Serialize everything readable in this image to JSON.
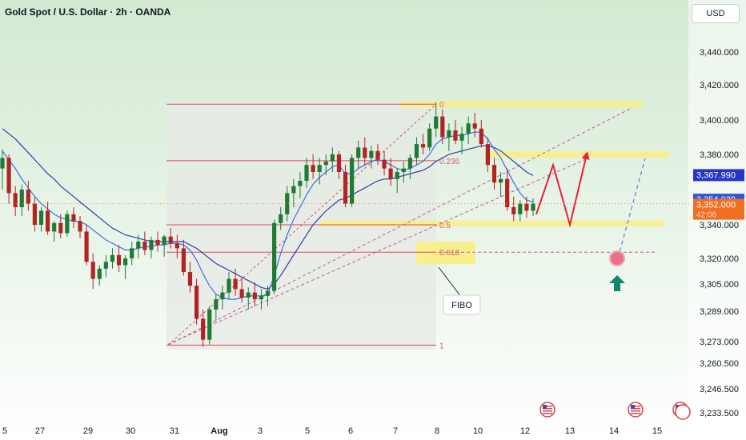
{
  "header": {
    "title": "Gold Spot / U.S. Dollar · 2h · OANDA",
    "currency_button": "USD"
  },
  "colors": {
    "background_top": "#d6ead5",
    "background_bottom": "#ffffff",
    "candle_up": "#1f7a34",
    "candle_down": "#b22424",
    "ma_fast": "#3a6ee8",
    "ma_slow": "#2d3db0",
    "fib_line": "#e0485a",
    "zone": "#fbee7c",
    "projection": "#e8203c",
    "target_dot": "#e9708a",
    "up_arrow": "#10896a",
    "price_badge_blue": "#2f56d8",
    "price_badge_navy": "#2436c7",
    "price_badge_orange": "#f26f21"
  },
  "chart_data": {
    "type": "candlestick",
    "symbol": "Gold Spot / U.S. Dollar",
    "interval": "2h",
    "source": "OANDA",
    "x_tick_labels": [
      "5",
      "27",
      "29",
      "30",
      "31",
      "Aug",
      "3",
      "5",
      "6",
      "7",
      "8",
      "10",
      "12",
      "13",
      "14",
      "15"
    ],
    "y_tick_labels": [
      3440.0,
      3420.0,
      3400.0,
      3380.0,
      3340.0,
      3320.0,
      3305.0,
      3289.0,
      3273.0,
      3260.5,
      3246.5,
      3233.5
    ],
    "y_tick_text": [
      "3,440.000",
      "3,420.000",
      "3,400.000",
      "3,380.000",
      "3,340.000",
      "3,320.000",
      "3,305.000",
      "3,289.000",
      "3,273.000",
      "3,260.500",
      "3,246.500",
      "3,233.500"
    ],
    "ylim": [
      3230,
      3458
    ],
    "fibonacci": {
      "swing_low": 3271,
      "swing_high": 3409,
      "levels": [
        {
          "label": "0",
          "ratio": 0
        },
        {
          "label": "0.236",
          "ratio": 0.236
        },
        {
          "label": "0.5",
          "ratio": 0.5
        },
        {
          "label": "0.618",
          "ratio": 0.618
        },
        {
          "label": "1",
          "ratio": 1
        }
      ]
    },
    "price_badges": [
      {
        "value": "3,367.990",
        "color": "price_badge_navy"
      },
      {
        "value": "3,354.039",
        "color": "price_badge_blue"
      },
      {
        "value": "3,352.000",
        "countdown": "42:06",
        "color": "price_badge_orange"
      }
    ],
    "annotations": [
      {
        "text": "FIBO"
      }
    ],
    "candles": [
      [
        3372,
        3383,
        3360,
        3378
      ],
      [
        3378,
        3380,
        3352,
        3358
      ],
      [
        3358,
        3362,
        3345,
        3350
      ],
      [
        3350,
        3363,
        3345,
        3360
      ],
      [
        3360,
        3365,
        3348,
        3352
      ],
      [
        3352,
        3356,
        3336,
        3340
      ],
      [
        3340,
        3350,
        3336,
        3348
      ],
      [
        3348,
        3353,
        3334,
        3336
      ],
      [
        3336,
        3342,
        3330,
        3341
      ],
      [
        3341,
        3346,
        3332,
        3335
      ],
      [
        3335,
        3348,
        3333,
        3346
      ],
      [
        3346,
        3350,
        3338,
        3342
      ],
      [
        3342,
        3345,
        3332,
        3336
      ],
      [
        3336,
        3340,
        3316,
        3318
      ],
      [
        3318,
        3323,
        3302,
        3308
      ],
      [
        3308,
        3316,
        3304,
        3314
      ],
      [
        3314,
        3322,
        3309,
        3318
      ],
      [
        3318,
        3326,
        3314,
        3322
      ],
      [
        3322,
        3328,
        3312,
        3316
      ],
      [
        3316,
        3322,
        3308,
        3320
      ],
      [
        3320,
        3330,
        3316,
        3326
      ],
      [
        3326,
        3334,
        3320,
        3330
      ],
      [
        3330,
        3336,
        3322,
        3325
      ],
      [
        3325,
        3333,
        3320,
        3331
      ],
      [
        3331,
        3336,
        3324,
        3328
      ],
      [
        3328,
        3334,
        3321,
        3333
      ],
      [
        3333,
        3338,
        3326,
        3329
      ],
      [
        3329,
        3334,
        3320,
        3326
      ],
      [
        3326,
        3331,
        3310,
        3312
      ],
      [
        3312,
        3318,
        3300,
        3304
      ],
      [
        3304,
        3308,
        3282,
        3285
      ],
      [
        3285,
        3290,
        3270,
        3274
      ],
      [
        3274,
        3292,
        3271,
        3290
      ],
      [
        3290,
        3299,
        3284,
        3296
      ],
      [
        3296,
        3304,
        3290,
        3300
      ],
      [
        3300,
        3312,
        3296,
        3308
      ],
      [
        3308,
        3314,
        3298,
        3302
      ],
      [
        3302,
        3309,
        3294,
        3297
      ],
      [
        3297,
        3303,
        3290,
        3300
      ],
      [
        3300,
        3306,
        3292,
        3296
      ],
      [
        3296,
        3302,
        3290,
        3298
      ],
      [
        3298,
        3304,
        3292,
        3301
      ],
      [
        3301,
        3343,
        3299,
        3341
      ],
      [
        3341,
        3350,
        3337,
        3346
      ],
      [
        3346,
        3362,
        3342,
        3358
      ],
      [
        3358,
        3366,
        3350,
        3362
      ],
      [
        3362,
        3370,
        3355,
        3365
      ],
      [
        3365,
        3378,
        3361,
        3374
      ],
      [
        3374,
        3380,
        3366,
        3370
      ],
      [
        3370,
        3378,
        3363,
        3374
      ],
      [
        3374,
        3380,
        3368,
        3376
      ],
      [
        3376,
        3384,
        3370,
        3380
      ],
      [
        3380,
        3382,
        3366,
        3370
      ],
      [
        3370,
        3374,
        3350,
        3352
      ],
      [
        3352,
        3380,
        3350,
        3378
      ],
      [
        3378,
        3388,
        3372,
        3384
      ],
      [
        3384,
        3390,
        3374,
        3378
      ],
      [
        3378,
        3385,
        3372,
        3382
      ],
      [
        3382,
        3386,
        3374,
        3377
      ],
      [
        3377,
        3382,
        3368,
        3372
      ],
      [
        3372,
        3378,
        3362,
        3366
      ],
      [
        3366,
        3372,
        3358,
        3370
      ],
      [
        3370,
        3376,
        3364,
        3372
      ],
      [
        3372,
        3380,
        3366,
        3378
      ],
      [
        3378,
        3390,
        3374,
        3386
      ],
      [
        3386,
        3392,
        3380,
        3384
      ],
      [
        3384,
        3398,
        3382,
        3395
      ],
      [
        3395,
        3410,
        3390,
        3402
      ],
      [
        3402,
        3406,
        3386,
        3390
      ],
      [
        3390,
        3398,
        3382,
        3394
      ],
      [
        3394,
        3400,
        3386,
        3388
      ],
      [
        3388,
        3396,
        3380,
        3392
      ],
      [
        3392,
        3402,
        3386,
        3398
      ],
      [
        3398,
        3404,
        3390,
        3395
      ],
      [
        3395,
        3400,
        3384,
        3386
      ],
      [
        3386,
        3390,
        3370,
        3374
      ],
      [
        3374,
        3378,
        3360,
        3364
      ],
      [
        3364,
        3370,
        3356,
        3366
      ],
      [
        3366,
        3372,
        3348,
        3350
      ],
      [
        3350,
        3356,
        3342,
        3346
      ],
      [
        3346,
        3354,
        3342,
        3352
      ],
      [
        3352,
        3356,
        3344,
        3348
      ],
      [
        3348,
        3355,
        3345,
        3352
      ]
    ],
    "ma_fast": [
      3382,
      3377,
      3372,
      3366,
      3361,
      3356,
      3352,
      3349,
      3346,
      3344,
      3343,
      3342,
      3342,
      3340,
      3337,
      3334,
      3331,
      3329,
      3327,
      3325,
      3325,
      3326,
      3327,
      3327,
      3328,
      3328,
      3329,
      3329,
      3328,
      3325,
      3319,
      3311,
      3304,
      3299,
      3297,
      3296,
      3296,
      3297,
      3298,
      3298,
      3298,
      3299,
      3310,
      3323,
      3334,
      3343,
      3350,
      3357,
      3363,
      3367,
      3370,
      3373,
      3374,
      3369,
      3369,
      3372,
      3374,
      3376,
      3377,
      3376,
      3374,
      3372,
      3371,
      3372,
      3374,
      3376,
      3380,
      3386,
      3389,
      3390,
      3391,
      3391,
      3392,
      3393,
      3393,
      3389,
      3383,
      3378,
      3371,
      3364,
      3358,
      3354,
      3353
    ],
    "ma_slow": [
      3395,
      3392,
      3389,
      3385,
      3381,
      3377,
      3373,
      3369,
      3366,
      3362,
      3359,
      3356,
      3353,
      3350,
      3347,
      3344,
      3341,
      3338,
      3336,
      3334,
      3333,
      3332,
      3331,
      3330,
      3330,
      3330,
      3330,
      3330,
      3330,
      3328,
      3326,
      3323,
      3320,
      3317,
      3315,
      3313,
      3311,
      3309,
      3307,
      3305,
      3303,
      3302,
      3305,
      3310,
      3316,
      3322,
      3328,
      3334,
      3340,
      3344,
      3348,
      3351,
      3354,
      3355,
      3357,
      3359,
      3361,
      3363,
      3365,
      3366,
      3366,
      3367,
      3368,
      3369,
      3370,
      3371,
      3373,
      3376,
      3378,
      3380,
      3381,
      3382,
      3383,
      3384,
      3385,
      3385,
      3384,
      3382,
      3379,
      3376,
      3373,
      3370,
      3368
    ],
    "projection_path": [
      [
        3346,
        0
      ],
      [
        3374,
        1
      ],
      [
        3340,
        2
      ],
      [
        3380,
        3
      ]
    ],
    "target_value": 3320
  }
}
